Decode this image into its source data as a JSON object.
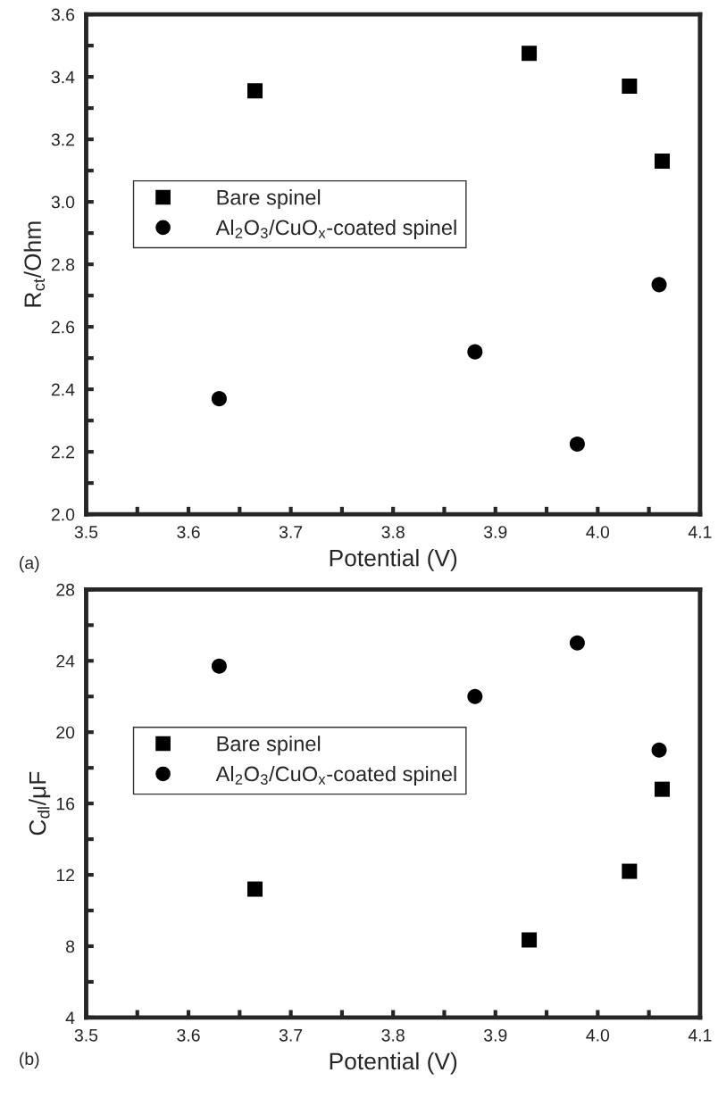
{
  "chart_data": [
    {
      "type": "scatter",
      "xlabel": "Potential (V)",
      "ylabel": "R$_{ct}$/Ohm",
      "annotations": [
        "(a)"
      ],
      "xlim": [
        3.5,
        4.1
      ],
      "xticks": [
        3.5,
        {
          "value": 3.55,
          "label": null
        },
        3.6,
        {
          "value": 3.65,
          "label": null
        },
        3.7,
        {
          "value": 3.75,
          "label": null
        },
        3.8,
        {
          "value": 3.85,
          "label": null
        },
        3.9,
        {
          "value": 3.95,
          "label": null
        },
        {
          "value": 4.0,
          "label": "4.0"
        },
        {
          "value": 4.05,
          "label": null
        },
        4.1
      ],
      "ylim": [
        2.0,
        3.6
      ],
      "yticks": [
        {
          "value": 2.0,
          "label": "2.0"
        },
        {
          "value": 2.1,
          "label": null
        },
        2.2,
        {
          "value": 2.3,
          "label": null
        },
        2.4,
        {
          "value": 2.5,
          "label": null
        },
        2.6,
        {
          "value": 2.7,
          "label": null
        },
        2.8,
        {
          "value": 2.9,
          "label": null
        },
        {
          "value": 3.0,
          "label": "3.0"
        },
        {
          "value": 3.1,
          "label": null
        },
        3.2,
        {
          "value": 3.3,
          "label": null
        },
        3.4,
        {
          "value": 3.5,
          "label": null
        },
        3.6
      ],
      "grid": false,
      "legend": "left",
      "series": [
        {
          "name": "Bare spinel",
          "color": "#000000",
          "marker": "square",
          "x": [
            3.665,
            3.933,
            4.031,
            4.063
          ],
          "values": [
            3.355,
            3.475,
            3.37,
            3.13
          ]
        },
        {
          "name": "Al$_{2}$O$_{3}$/CuO$_{x}$-coated spinel",
          "color": "#000000",
          "marker": "circle",
          "x": [
            3.63,
            3.88,
            3.98,
            4.06
          ],
          "values": [
            2.37,
            2.52,
            2.225,
            2.735
          ]
        }
      ]
    },
    {
      "type": "scatter",
      "xlabel": "Potential (V)",
      "ylabel": "C$_{dl}$/μF",
      "annotations": [
        "(b)"
      ],
      "xlim": [
        3.5,
        4.1
      ],
      "xticks": [
        3.5,
        {
          "value": 3.55,
          "label": null
        },
        3.6,
        {
          "value": 3.65,
          "label": null
        },
        3.7,
        {
          "value": 3.75,
          "label": null
        },
        3.8,
        {
          "value": 3.85,
          "label": null
        },
        3.9,
        {
          "value": 3.95,
          "label": null
        },
        {
          "value": 4.0,
          "label": "4.0"
        },
        {
          "value": 4.05,
          "label": null
        },
        4.1
      ],
      "ylim": [
        4,
        28
      ],
      "yticks": [
        4,
        {
          "value": 6,
          "label": null
        },
        8,
        {
          "value": 10,
          "label": null
        },
        12,
        {
          "value": 14,
          "label": null
        },
        16,
        {
          "value": 18,
          "label": null
        },
        20,
        {
          "value": 22,
          "label": null
        },
        24,
        {
          "value": 26,
          "label": null
        },
        28
      ],
      "grid": false,
      "legend": "left",
      "series": [
        {
          "name": "Bare spinel",
          "color": "#000000",
          "marker": "square",
          "x": [
            3.665,
            3.933,
            4.031,
            4.063
          ],
          "values": [
            11.2,
            8.35,
            12.2,
            16.8
          ]
        },
        {
          "name": "Al$_{2}$O$_{3}$/CuO$_{x}$-coated spinel",
          "color": "#000000",
          "marker": "circle",
          "x": [
            3.63,
            3.88,
            3.98,
            4.06
          ],
          "values": [
            23.7,
            22.0,
            25.0,
            19.0
          ]
        }
      ]
    }
  ]
}
